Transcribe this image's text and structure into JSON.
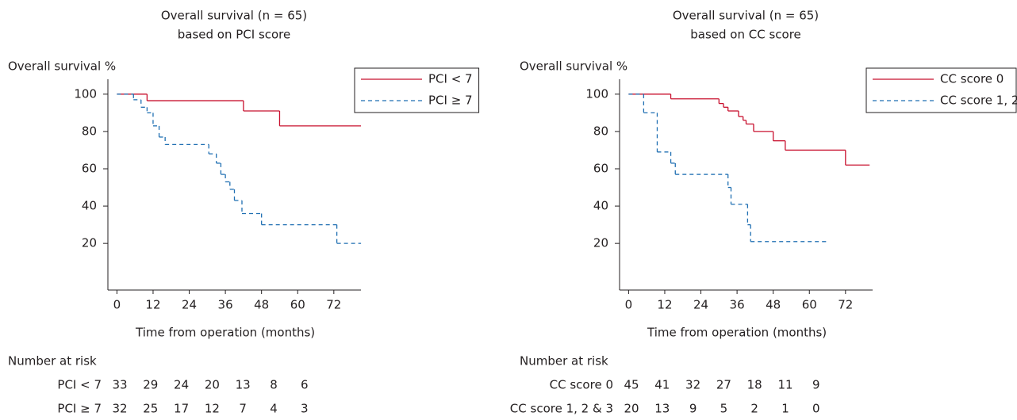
{
  "chart_data": [
    {
      "type": "step",
      "title": [
        "Overall survival (n = 65)",
        "based on PCI score"
      ],
      "ylabel": "Overall survival %",
      "xlabel": "Time from operation (months)",
      "xlim": [
        -3,
        81
      ],
      "ylim": [
        -5,
        108
      ],
      "xticks": [
        0,
        12,
        24,
        36,
        48,
        60,
        72
      ],
      "yticks": [
        20,
        40,
        60,
        80,
        100
      ],
      "legend": "upper right",
      "series": [
        {
          "name": "PCI < 7",
          "color": "#c8102e",
          "dash": false,
          "x": [
            0,
            10,
            42,
            54,
            81
          ],
          "values": [
            100,
            96.5,
            91,
            83,
            83
          ]
        },
        {
          "name": "PCI ≥ 7",
          "color": "#1f6fb2",
          "dash": true,
          "x": [
            0,
            5.5,
            8,
            10,
            12,
            14,
            16,
            30.5,
            33,
            34.5,
            36,
            37.5,
            39,
            41.5,
            48,
            73,
            81
          ],
          "values": [
            100,
            97,
            93,
            90,
            83,
            77,
            73,
            68,
            63,
            57,
            53,
            49,
            43,
            36,
            30,
            20,
            20
          ]
        }
      ],
      "risk_table": {
        "title": "Number at risk",
        "rows": [
          [
            33,
            29,
            24,
            20,
            13,
            8,
            6
          ],
          [
            32,
            25,
            17,
            12,
            7,
            4,
            3
          ]
        ]
      }
    },
    {
      "type": "step",
      "title": [
        "Overall survival (n = 65)",
        "based on CC score"
      ],
      "ylabel": "Overall survival %",
      "xlabel": "Time from operation (months)",
      "xlim": [
        -3,
        81
      ],
      "ylim": [
        -5,
        108
      ],
      "xticks": [
        0,
        12,
        24,
        36,
        48,
        60,
        72
      ],
      "yticks": [
        20,
        40,
        60,
        80,
        100
      ],
      "legend": "upper right",
      "series": [
        {
          "name": "CC score 0",
          "color": "#c8102e",
          "dash": false,
          "x": [
            0,
            14,
            30,
            31.5,
            33,
            36.5,
            38,
            39,
            41.5,
            48,
            52,
            72,
            80
          ],
          "values": [
            100,
            97.5,
            95,
            93,
            91,
            88,
            86,
            84,
            80,
            75,
            70,
            62,
            62
          ]
        },
        {
          "name": "CC score 1, 2 & 3",
          "color": "#1f6fb2",
          "dash": true,
          "x": [
            0,
            5,
            9.5,
            14,
            15.5,
            33,
            34,
            39.5,
            40.5,
            65.5
          ],
          "values": [
            100,
            90,
            69,
            63,
            57,
            50,
            41,
            30,
            21,
            21
          ]
        }
      ],
      "risk_table": {
        "title": "Number at risk",
        "rows": [
          [
            45,
            41,
            32,
            27,
            18,
            11,
            9
          ],
          [
            20,
            13,
            9,
            5,
            2,
            1,
            0
          ]
        ]
      }
    }
  ]
}
